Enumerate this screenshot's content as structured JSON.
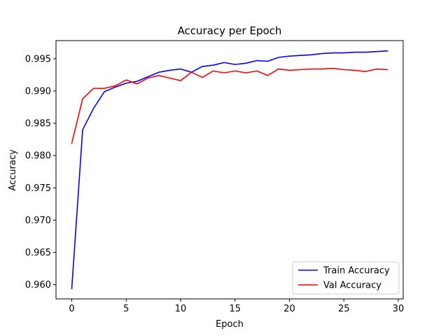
{
  "chart_data": {
    "type": "line",
    "title": "Accuracy per Epoch",
    "xlabel": "Epoch",
    "ylabel": "Accuracy",
    "xlim": [
      -1.45,
      30.45
    ],
    "ylim": [
      0.9578,
      0.9978
    ],
    "xticks": [
      0,
      5,
      10,
      15,
      20,
      25,
      30
    ],
    "yticks": [
      0.96,
      0.965,
      0.97,
      0.975,
      0.98,
      0.985,
      0.99,
      0.995
    ],
    "ytick_labels": [
      "0.960",
      "0.965",
      "0.970",
      "0.975",
      "0.980",
      "0.985",
      "0.990",
      "0.995"
    ],
    "grid": false,
    "legend_position": "lower-right",
    "x": [
      0,
      1,
      2,
      3,
      4,
      5,
      6,
      7,
      8,
      9,
      10,
      11,
      12,
      13,
      14,
      15,
      16,
      17,
      18,
      19,
      20,
      21,
      22,
      23,
      24,
      25,
      26,
      27,
      28,
      29
    ],
    "series": [
      {
        "name": "Train Accuracy",
        "color": "#0000ff",
        "values": [
          0.9594,
          0.984,
          0.9873,
          0.9899,
          0.9906,
          0.9912,
          0.9915,
          0.9922,
          0.9929,
          0.9932,
          0.9934,
          0.9929,
          0.9938,
          0.994,
          0.9944,
          0.9941,
          0.9943,
          0.9947,
          0.9946,
          0.9952,
          0.9954,
          0.9955,
          0.9956,
          0.9958,
          0.9959,
          0.9959,
          0.996,
          0.996,
          0.9961,
          0.9962
        ]
      },
      {
        "name": "Val Accuracy",
        "color": "#ff0000",
        "values": [
          0.9819,
          0.9888,
          0.9904,
          0.9904,
          0.9908,
          0.9917,
          0.9911,
          0.992,
          0.9924,
          0.992,
          0.9916,
          0.9929,
          0.9921,
          0.9931,
          0.9928,
          0.9931,
          0.9928,
          0.9931,
          0.9924,
          0.9934,
          0.9932,
          0.9933,
          0.9934,
          0.9934,
          0.9935,
          0.9933,
          0.9932,
          0.993,
          0.9934,
          0.9933
        ]
      }
    ]
  }
}
